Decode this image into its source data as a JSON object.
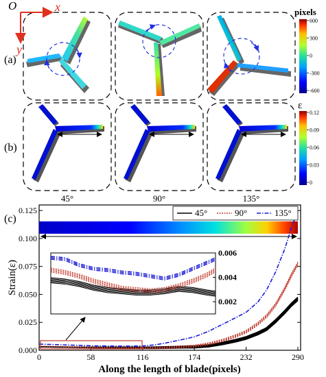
{
  "panels": {
    "axes_origin": "O",
    "axis_x": "x",
    "axis_y": "y",
    "row_a_label": "(a)",
    "row_b_label": "(b)",
    "row_c_label": "(c)",
    "angles": [
      "45°",
      "90°",
      "135°"
    ]
  },
  "colorbar_a": {
    "title": "pixels",
    "ticks": [
      600,
      300,
      0,
      -300,
      -600
    ],
    "range": [
      -600,
      600
    ]
  },
  "colorbar_b": {
    "title": "ε",
    "ticks": [
      "0.12",
      "0.09",
      "0.06",
      "0.03",
      "0"
    ],
    "range": [
      0,
      0.12
    ]
  },
  "colors": {
    "series_45": "#000000",
    "series_90": "#c0392b",
    "series_135": "#1a1ad6",
    "accent_axes": "#e03020",
    "inset_box": "#c0392b"
  },
  "chart_data": {
    "type": "line",
    "title": "",
    "xlabel": "Along the length of blade(pixels)",
    "ylabel": "Strain(ε)",
    "xlim": [
      0,
      290
    ],
    "ylim": [
      0,
      0.13
    ],
    "xticks": [
      "0",
      "58",
      "116",
      "174",
      "232",
      "290"
    ],
    "yticks": [
      "0.000",
      "0.025",
      "0.050",
      "0.075",
      "0.100",
      "0.125"
    ],
    "legend_position": "top-right",
    "series": [
      {
        "name": "45°",
        "x": [
          0,
          20,
          40,
          60,
          80,
          100,
          116,
          130,
          145,
          160,
          174,
          190,
          205,
          220,
          232,
          245,
          255,
          265,
          275,
          283,
          290
        ],
        "y": [
          0.003,
          0.0029,
          0.0027,
          0.0025,
          0.0024,
          0.0023,
          0.0022,
          0.0023,
          0.0025,
          0.0028,
          0.003,
          0.004,
          0.006,
          0.0085,
          0.011,
          0.015,
          0.019,
          0.026,
          0.034,
          0.041,
          0.046
        ]
      },
      {
        "name": "90°",
        "x": [
          0,
          20,
          40,
          60,
          80,
          100,
          116,
          130,
          145,
          160,
          174,
          190,
          205,
          220,
          232,
          245,
          255,
          265,
          275,
          283,
          290
        ],
        "y": [
          0.0035,
          0.0033,
          0.0029,
          0.0025,
          0.0023,
          0.0022,
          0.0021,
          0.0022,
          0.0026,
          0.0033,
          0.004,
          0.006,
          0.009,
          0.013,
          0.017,
          0.024,
          0.031,
          0.041,
          0.055,
          0.068,
          0.078
        ]
      },
      {
        "name": "135°",
        "x": [
          0,
          20,
          40,
          60,
          80,
          100,
          116,
          130,
          145,
          160,
          174,
          190,
          205,
          220,
          232,
          245,
          255,
          265,
          275,
          283,
          290
        ],
        "y": [
          0.0055,
          0.005,
          0.0045,
          0.004,
          0.0038,
          0.0037,
          0.0039,
          0.0048,
          0.007,
          0.0095,
          0.012,
          0.017,
          0.023,
          0.029,
          0.034,
          0.043,
          0.054,
          0.07,
          0.09,
          0.11,
          0.125
        ]
      }
    ],
    "inset": {
      "xlim": [
        0,
        116
      ],
      "ylim": [
        0.001,
        0.006
      ],
      "yticks": [
        "0.002",
        "0.004",
        "0.006"
      ],
      "series": [
        {
          "name": "45°",
          "x": [
            0,
            10,
            20,
            30,
            40,
            50,
            60,
            70,
            80,
            90,
            100,
            110,
            116
          ],
          "y": [
            0.0038,
            0.0037,
            0.0035,
            0.0032,
            0.003,
            0.0029,
            0.0028,
            0.0028,
            0.0029,
            0.0031,
            0.003,
            0.0028,
            0.0027
          ]
        },
        {
          "name": "90°",
          "x": [
            0,
            10,
            20,
            30,
            40,
            50,
            60,
            70,
            80,
            90,
            100,
            110,
            116
          ],
          "y": [
            0.0046,
            0.0044,
            0.0041,
            0.0037,
            0.0034,
            0.0031,
            0.003,
            0.0029,
            0.003,
            0.0033,
            0.0037,
            0.0042,
            0.0046
          ]
        },
        {
          "name": "135°",
          "x": [
            0,
            10,
            20,
            30,
            40,
            50,
            60,
            70,
            80,
            90,
            100,
            110,
            116
          ],
          "y": [
            0.0056,
            0.0055,
            0.005,
            0.0047,
            0.0046,
            0.0044,
            0.0043,
            0.0041,
            0.0039,
            0.0042,
            0.0047,
            0.0052,
            0.0055
          ]
        }
      ]
    }
  }
}
